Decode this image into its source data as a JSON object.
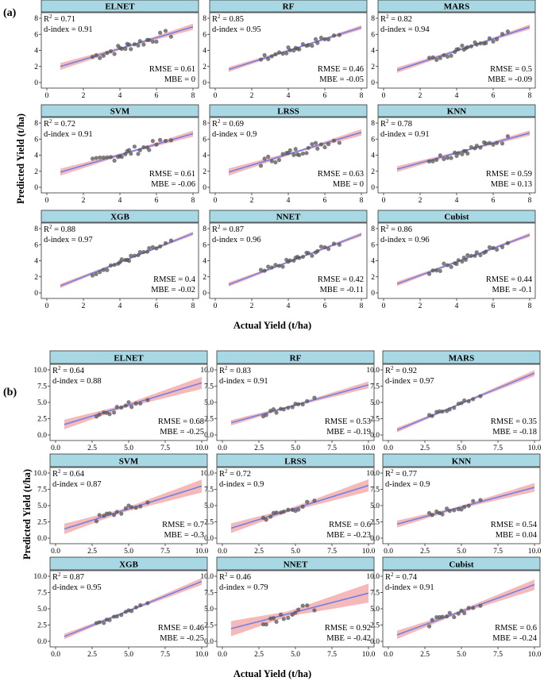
{
  "panel_labels": [
    "(a)",
    "(b)"
  ],
  "colors": {
    "strip": "#a8d8e4",
    "point": "#555555",
    "line": "#6f80e8",
    "band": "#f4a7a7"
  },
  "chart_data": [
    {
      "type": "scatter",
      "title": "(a)",
      "xlabel": "Actual Yield (t/ha)",
      "ylabel": "Predicted Yield (t/ha)",
      "xlim": [
        0,
        8
      ],
      "ylim": [
        0,
        8
      ],
      "xticks": [
        "0",
        "2",
        "4",
        "6",
        "8"
      ],
      "yticks": [
        "0",
        "2",
        "4",
        "6",
        "8"
      ],
      "observed_x": [
        2.5,
        2.7,
        2.9,
        3.1,
        3.3,
        3.5,
        3.7,
        3.9,
        4.0,
        4.1,
        4.3,
        4.4,
        4.5,
        4.6,
        4.8,
        5.0,
        5.1,
        5.3,
        5.5,
        5.6,
        5.8,
        6.0,
        6.2,
        6.5,
        6.8
      ],
      "models": [
        {
          "name": "ELNET",
          "r2": "R2 = 0.71",
          "dindex": "d-index = 0.91",
          "rmse": "RMSE = 0.61",
          "mbe": "MBE = 0",
          "slope": 0.68,
          "intercept": 1.5,
          "ci": 0.35,
          "noise": 0.55
        },
        {
          "name": "RF",
          "r2": "R2 = 0.85",
          "dindex": "d-index = 0.95",
          "rmse": "RMSE = 0.46",
          "mbe": "MBE = -0.05",
          "slope": 0.72,
          "intercept": 1.1,
          "ci": 0.25,
          "noise": 0.4
        },
        {
          "name": "MARS",
          "r2": "R2 = 0.82",
          "dindex": "d-index = 0.94",
          "rmse": "RMSE = 0.5",
          "mbe": "MBE = -0.09",
          "slope": 0.74,
          "intercept": 1.0,
          "ci": 0.28,
          "noise": 0.45
        },
        {
          "name": "SVM",
          "r2": "R2 = 0.72",
          "dindex": "d-index = 0.91",
          "rmse": "RMSE = 0.61",
          "mbe": "MBE = -0.06",
          "slope": 0.66,
          "intercept": 1.4,
          "ci": 0.35,
          "noise": 0.55
        },
        {
          "name": "LRSS",
          "r2": "R2 = 0.69",
          "dindex": "d-index = 0.9",
          "rmse": "RMSE = 0.63",
          "mbe": "MBE = 0",
          "slope": 0.68,
          "intercept": 1.4,
          "ci": 0.36,
          "noise": 0.56
        },
        {
          "name": "KNN",
          "r2": "R2 = 0.78",
          "dindex": "d-index = 0.91",
          "rmse": "RMSE = 0.59",
          "mbe": "MBE = 0.13",
          "slope": 0.62,
          "intercept": 1.8,
          "ci": 0.3,
          "noise": 0.45
        },
        {
          "name": "XGB",
          "r2": "R2 = 0.88",
          "dindex": "d-index = 0.97",
          "rmse": "RMSE = 0.4",
          "mbe": "MBE = -0.02",
          "slope": 0.9,
          "intercept": 0.2,
          "ci": 0.22,
          "noise": 0.35
        },
        {
          "name": "NNET",
          "r2": "R2 = 0.87",
          "dindex": "d-index = 0.96",
          "rmse": "RMSE = 0.42",
          "mbe": "MBE = -0.11",
          "slope": 0.86,
          "intercept": 0.4,
          "ci": 0.22,
          "noise": 0.38
        },
        {
          "name": "Cubist",
          "r2": "R2 = 0.86",
          "dindex": "d-index = 0.96",
          "rmse": "RMSE = 0.44",
          "mbe": "MBE = -0.1",
          "slope": 0.84,
          "intercept": 0.5,
          "ci": 0.23,
          "noise": 0.4
        }
      ]
    },
    {
      "type": "scatter",
      "title": "(b)",
      "xlabel": "Actual Yield (t/ha)",
      "ylabel": "Predicted Yield (t/ha)",
      "xlim": [
        0,
        10
      ],
      "ylim": [
        0,
        10
      ],
      "xticks": [
        "0.0",
        "2.5",
        "5.0",
        "7.5",
        "10.0"
      ],
      "yticks": [
        "0.0",
        "2.5",
        "5.0",
        "7.5",
        "10.0"
      ],
      "observed_x": [
        2.8,
        3.0,
        3.3,
        3.5,
        3.7,
        4.0,
        4.2,
        4.5,
        4.8,
        5.0,
        5.2,
        5.5,
        5.8,
        6.3
      ],
      "models": [
        {
          "name": "ELNET",
          "r2": "R2 = 0.64",
          "dindex": "d-index = 0.88",
          "rmse": "RMSE = 0.68",
          "mbe": "MBE = -0.25",
          "slope": 0.68,
          "intercept": 1.2,
          "ci": 0.7,
          "noise": 0.55
        },
        {
          "name": "RF",
          "r2": "R2 = 0.83",
          "dindex": "d-index = 0.91",
          "rmse": "RMSE = 0.53",
          "mbe": "MBE = -0.19",
          "slope": 0.62,
          "intercept": 1.5,
          "ci": 0.4,
          "noise": 0.4
        },
        {
          "name": "MARS",
          "r2": "R2 = 0.92",
          "dindex": "d-index = 0.97",
          "rmse": "RMSE = 0.35",
          "mbe": "MBE = -0.18",
          "slope": 0.93,
          "intercept": 0.2,
          "ci": 0.35,
          "noise": 0.3
        },
        {
          "name": "SVM",
          "r2": "R2 = 0.64",
          "dindex": "d-index = 0.87",
          "rmse": "RMSE = 0.7",
          "mbe": "MBE = -0.3",
          "slope": 0.7,
          "intercept": 1.0,
          "ci": 0.75,
          "noise": 0.55
        },
        {
          "name": "LRSS",
          "r2": "R2 = 0.72",
          "dindex": "d-index = 0.9",
          "rmse": "RMSE = 0.6",
          "mbe": "MBE = -0.23",
          "slope": 0.7,
          "intercept": 1.1,
          "ci": 0.7,
          "noise": 0.5
        },
        {
          "name": "KNN",
          "r2": "R2 = 0.77",
          "dindex": "d-index = 0.9",
          "rmse": "RMSE = 0.54",
          "mbe": "MBE = 0.04",
          "slope": 0.6,
          "intercept": 1.8,
          "ci": 0.5,
          "noise": 0.45
        },
        {
          "name": "XGB",
          "r2": "R2 = 0.87",
          "dindex": "d-index = 0.95",
          "rmse": "RMSE = 0.46",
          "mbe": "MBE = -0.25",
          "slope": 0.9,
          "intercept": 0.2,
          "ci": 0.4,
          "noise": 0.4
        },
        {
          "name": "NNET",
          "r2": "R2 = 0.46",
          "dindex": "d-index = 0.79",
          "rmse": "RMSE = 0.92",
          "mbe": "MBE = -0.42",
          "slope": 0.58,
          "intercept": 1.6,
          "ci": 1.1,
          "noise": 0.75
        },
        {
          "name": "Cubist",
          "r2": "R2 = 0.74",
          "dindex": "d-index = 0.91",
          "rmse": "RMSE = 0.6",
          "mbe": "MBE = -0.24",
          "slope": 0.82,
          "intercept": 0.5,
          "ci": 0.6,
          "noise": 0.5
        }
      ]
    }
  ]
}
